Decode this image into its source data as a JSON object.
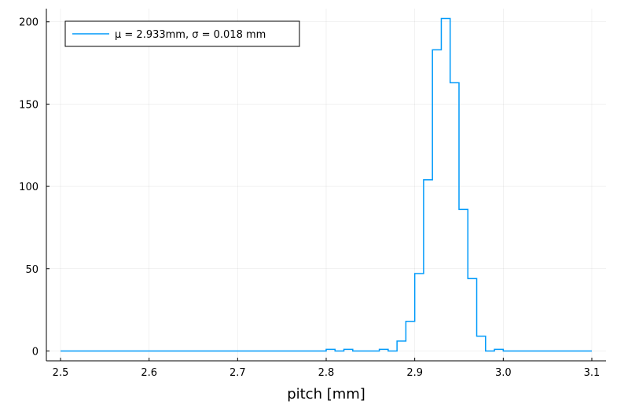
{
  "chart_data": {
    "type": "line",
    "title": "",
    "xlabel": "pitch [mm]",
    "ylabel": "",
    "xlim": [
      2.484,
      3.116
    ],
    "ylim": [
      -6,
      208
    ],
    "x_ticks": [
      2.5,
      2.6,
      2.7,
      2.8,
      2.9,
      3.0,
      3.1
    ],
    "x_tick_labels": [
      "2.5",
      "2.6",
      "2.7",
      "2.8",
      "2.9",
      "3.0",
      "3.1"
    ],
    "y_ticks": [
      0,
      50,
      100,
      150,
      200
    ],
    "y_tick_labels": [
      "0",
      "50",
      "100",
      "150",
      "200"
    ],
    "grid": true,
    "legend_position": "top-left",
    "series": [
      {
        "name": "μ = 2.933mm, σ = 0.018 mm",
        "color": "#009AFA",
        "step": "post",
        "x": [
          2.5,
          2.51,
          2.52,
          2.53,
          2.54,
          2.55,
          2.56,
          2.57,
          2.58,
          2.59,
          2.6,
          2.61,
          2.62,
          2.63,
          2.64,
          2.65,
          2.66,
          2.67,
          2.68,
          2.69,
          2.7,
          2.71,
          2.72,
          2.73,
          2.74,
          2.75,
          2.76,
          2.77,
          2.78,
          2.79,
          2.8,
          2.81,
          2.82,
          2.83,
          2.84,
          2.85,
          2.86,
          2.87,
          2.88,
          2.89,
          2.9,
          2.91,
          2.92,
          2.93,
          2.94,
          2.95,
          2.96,
          2.97,
          2.98,
          2.99,
          3.0,
          3.01,
          3.02,
          3.03,
          3.04,
          3.05,
          3.06,
          3.07,
          3.08,
          3.09,
          3.1
        ],
        "y": [
          0,
          0,
          0,
          0,
          0,
          0,
          0,
          0,
          0,
          0,
          0,
          0,
          0,
          0,
          0,
          0,
          0,
          0,
          0,
          0,
          0,
          0,
          0,
          0,
          0,
          0,
          0,
          0,
          0,
          0,
          1,
          0,
          1,
          0,
          0,
          0,
          1,
          0,
          6,
          18,
          47,
          104,
          183,
          202,
          163,
          86,
          44,
          9,
          0,
          1,
          0,
          0,
          0,
          0,
          0,
          0,
          0,
          0,
          0,
          0,
          0
        ]
      }
    ]
  }
}
